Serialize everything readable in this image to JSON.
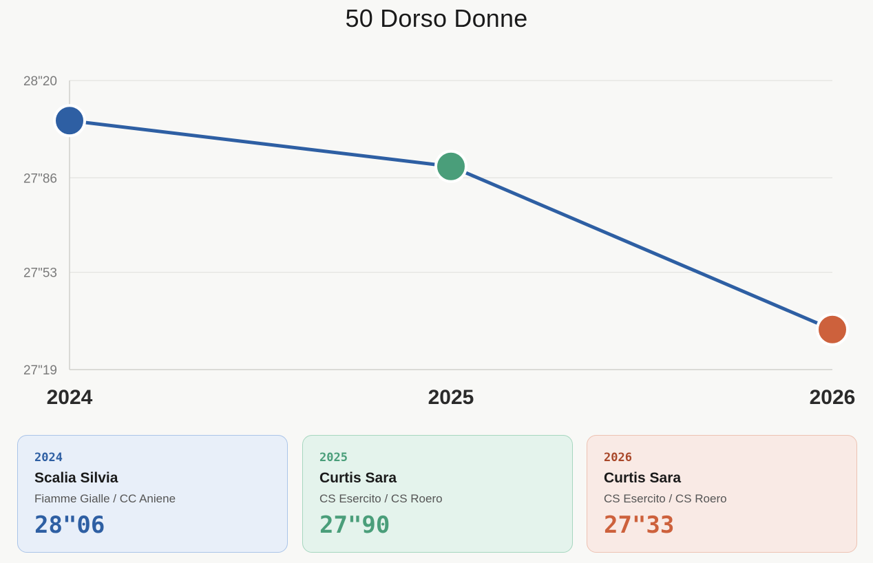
{
  "title": "50 Dorso Donne",
  "chart_data": {
    "type": "line",
    "title": "50 Dorso Donne",
    "categories": [
      "2024",
      "2025",
      "2026"
    ],
    "x_tick_labels": [
      "2024",
      "2025",
      "2026"
    ],
    "values": [
      28.06,
      27.9,
      27.33
    ],
    "y_tick_values": [
      27.19,
      27.53,
      27.86,
      28.2
    ],
    "y_tick_labels": [
      "27\"19",
      "27\"53",
      "27\"86",
      "28\"20"
    ],
    "ylim": [
      27.19,
      28.2
    ],
    "grid": true,
    "line_color": "#2e5fa3",
    "point_colors": [
      "#2e5fa3",
      "#4a9e7a",
      "#cd613c"
    ]
  },
  "cards": [
    {
      "year": "2024",
      "name": "Scalia Silvia",
      "team": "Fiamme Gialle / CC Aniene",
      "time": "28\"06",
      "accent": "#2e5fa3",
      "bg": "#e8eff9",
      "border": "#aac4e8"
    },
    {
      "year": "2025",
      "name": "Curtis Sara",
      "team": "CS Esercito / CS Roero",
      "time": "27\"90",
      "accent": "#4a9e7a",
      "bg": "#e4f3ec",
      "border": "#a6d6bf"
    },
    {
      "year": "2026",
      "name": "Curtis Sara",
      "team": "CS Esercito / CS Roero",
      "time": "27\"33",
      "accent": "#cd613c",
      "yearColor": "#a9482a",
      "bg": "#f9eae5",
      "border": "#edc2b2"
    }
  ]
}
